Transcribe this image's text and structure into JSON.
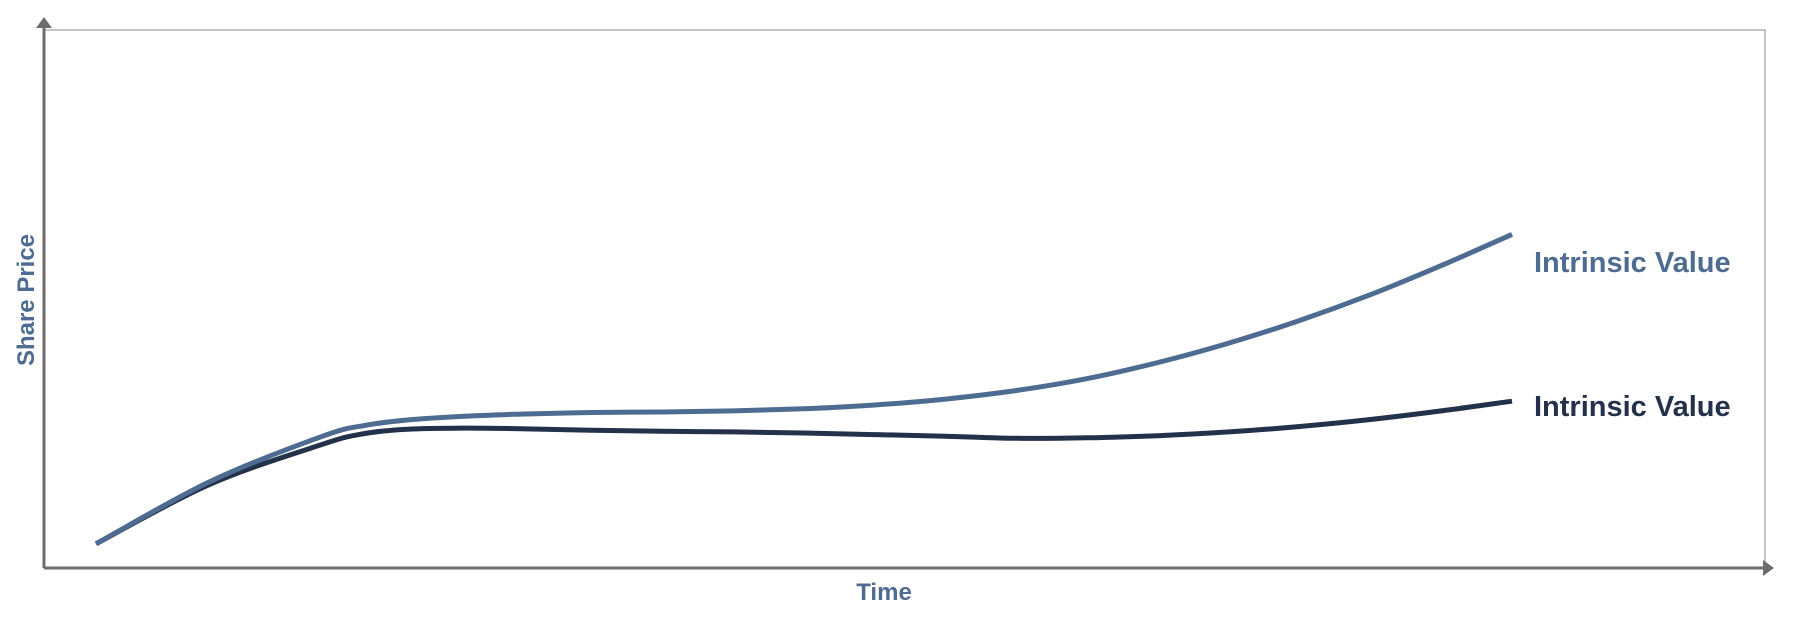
{
  "chart_data": {
    "type": "line",
    "title": "",
    "xlabel": "Time",
    "ylabel": "Share Price",
    "xlim": [
      0,
      100
    ],
    "ylim": [
      0,
      100
    ],
    "grid": false,
    "tick_labels": false,
    "series": [
      {
        "name": "Intrinsic Value",
        "color": "#4e6c91",
        "x": [
          0,
          8,
          16,
          19,
          22,
          26,
          30,
          35,
          40,
          45,
          50,
          55,
          60,
          65,
          70,
          75,
          80,
          85,
          90,
          95,
          100
        ],
        "y": [
          4.5,
          16,
          24.5,
          26.5,
          27.5,
          28.2,
          28.6,
          28.9,
          29,
          29.2,
          29.6,
          30.3,
          31.4,
          33.0,
          35.2,
          38.2,
          41.8,
          46.0,
          50.8,
          56.2,
          62
        ]
      },
      {
        "name": "Intrinsic Value",
        "color": "#23324a",
        "x": [
          0,
          8,
          16,
          19,
          22,
          26,
          30,
          35,
          40,
          45,
          50,
          55,
          60,
          65,
          70,
          75,
          80,
          85,
          90,
          95,
          100
        ],
        "y": [
          4.5,
          15.5,
          23,
          25,
          25.8,
          26,
          25.9,
          25.6,
          25.4,
          25.3,
          25.1,
          24.8,
          24.5,
          24.1,
          24.2,
          24.6,
          25.3,
          26.3,
          27.6,
          29.2,
          31
        ]
      }
    ]
  }
}
